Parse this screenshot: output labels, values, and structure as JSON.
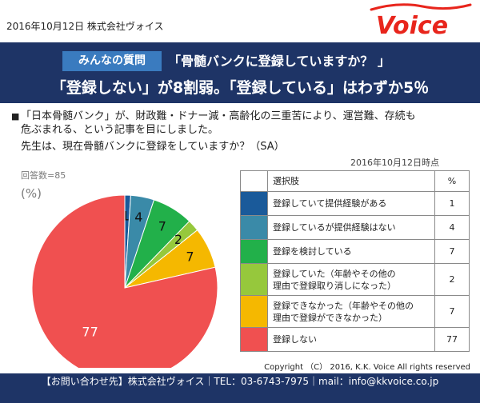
{
  "header": {
    "date_company": "2016年10月12日 株式会社ヴォイス",
    "logo_text": "Voice"
  },
  "banner": {
    "tag": "みんなの質問",
    "question": "「骨髄バンクに登録していますか？ 」",
    "headline": "「登録しない」が8割弱。「登録している」はわずか5％"
  },
  "intro": {
    "bullet": "■",
    "line1": "「日本骨髄バンク」が、財政難・ドナー減・高齢化の三重苦により、運営難、存続も",
    "line2": "危ぶまれる、という記事を目にしました。",
    "question": "先生は、現在骨髄バンクに登録をしていますか？（SA）"
  },
  "as_of": "2016年10月12日時点",
  "responses": "回答数=85",
  "unit": "(%)",
  "table": {
    "col_choice": "選択肢",
    "col_pct": "%"
  },
  "chart_data": {
    "type": "pie",
    "categories": [
      "登録していて提供経験がある",
      "登録しているが提供経験はない",
      "登録を検討している",
      "登録していた（年齢やその他の理由で登録取り消しになった）",
      "登録できなかった（年齢やその他の理由で登録ができなかった）",
      "登録しない"
    ],
    "values": [
      1,
      4,
      7,
      2,
      7,
      77
    ],
    "colors": [
      "#1a5a9a",
      "#3a8aa8",
      "#22b04a",
      "#96c83c",
      "#f5b800",
      "#f05050"
    ]
  },
  "legend_rows": [
    {
      "label_a": "登録していて提供経験がある",
      "label_b": "",
      "value": "1",
      "color": "#1a5a9a"
    },
    {
      "label_a": "登録しているが提供経験はない",
      "label_b": "",
      "value": "4",
      "color": "#3a8aa8"
    },
    {
      "label_a": "登録を検討している",
      "label_b": "",
      "value": "7",
      "color": "#22b04a"
    },
    {
      "label_a": "登録していた（年齢やその他の",
      "label_b": "理由で登録取り消しになった）",
      "value": "2",
      "color": "#96c83c"
    },
    {
      "label_a": "登録できなかった（年齢やその他の",
      "label_b": "理由で登録ができなかった）",
      "value": "7",
      "color": "#f5b800"
    },
    {
      "label_a": "登録しない",
      "label_b": "",
      "value": "77",
      "color": "#f05050"
    }
  ],
  "copyright": "Copyright （C） 2016, K.K. Voice All rights reserved",
  "footer": {
    "contact": "【お問い合わせ先】株式会社ヴォイス｜TEL：03-6743-7975｜mail：info@kkvoice.co.jp"
  }
}
